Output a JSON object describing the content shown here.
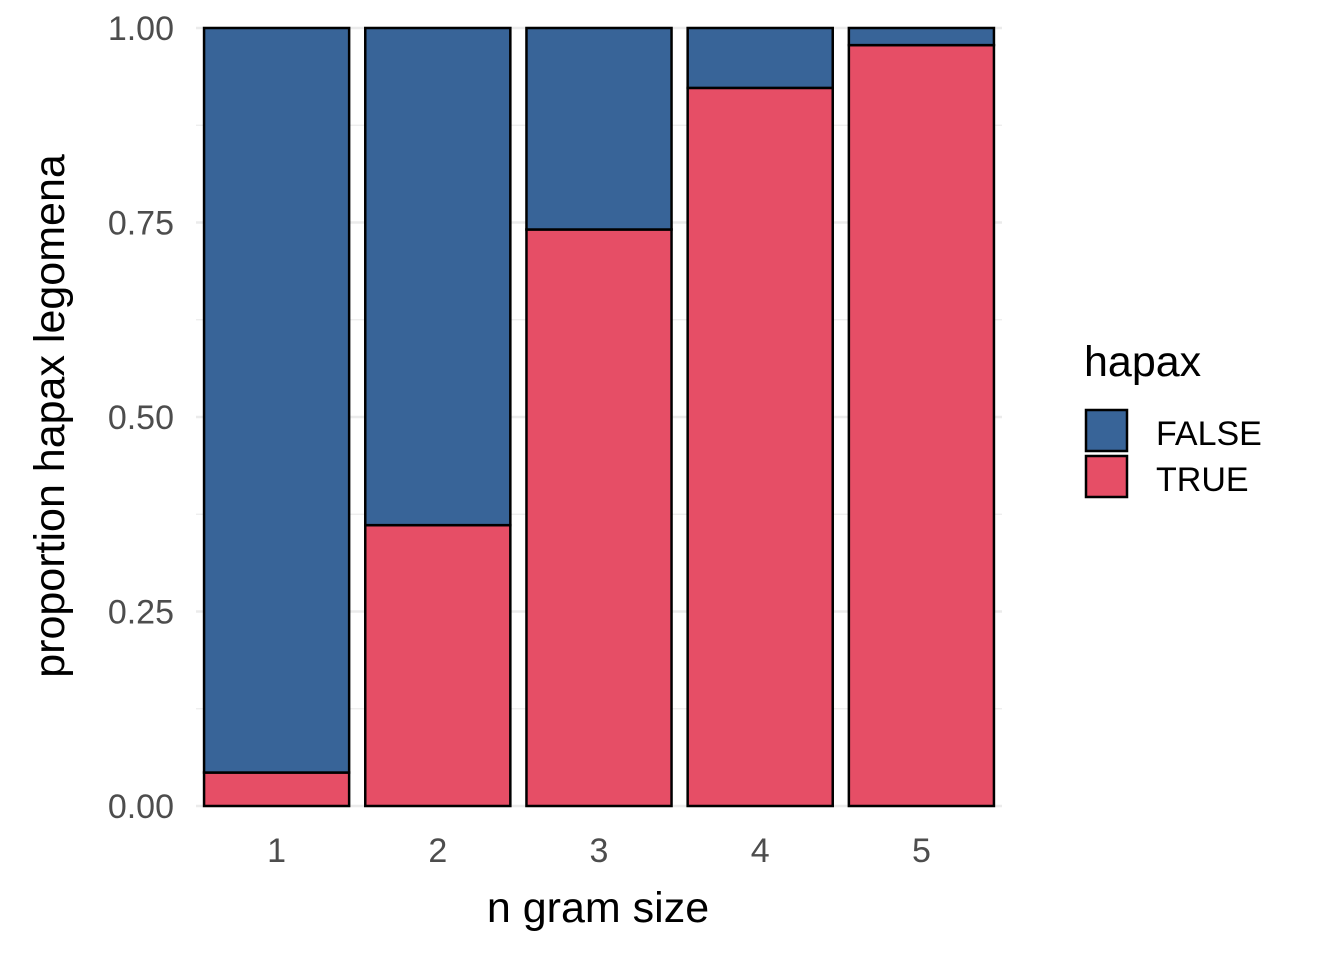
{
  "chart_data": {
    "type": "bar",
    "stacked": true,
    "categories": [
      "1",
      "2",
      "3",
      "4",
      "5"
    ],
    "series": [
      {
        "name": "TRUE",
        "values": [
          0.043,
          0.361,
          0.741,
          0.923,
          0.978
        ]
      },
      {
        "name": "FALSE",
        "values": [
          0.957,
          0.639,
          0.259,
          0.077,
          0.022
        ]
      }
    ],
    "xlabel": "n gram size",
    "ylabel": "proportion hapax legomena",
    "ylim": [
      0,
      1
    ],
    "yticks": [
      "0.00",
      "0.25",
      "0.50",
      "0.75",
      "1.00"
    ],
    "grid": true,
    "legend": {
      "title": "hapax",
      "placement": "right",
      "entries": [
        "FALSE",
        "TRUE"
      ]
    },
    "colors": {
      "FALSE": "#386498",
      "TRUE": "#e64e66",
      "outline": "#000000",
      "grid": "#ebebeb",
      "tick_text": "#4d4d4d"
    }
  }
}
